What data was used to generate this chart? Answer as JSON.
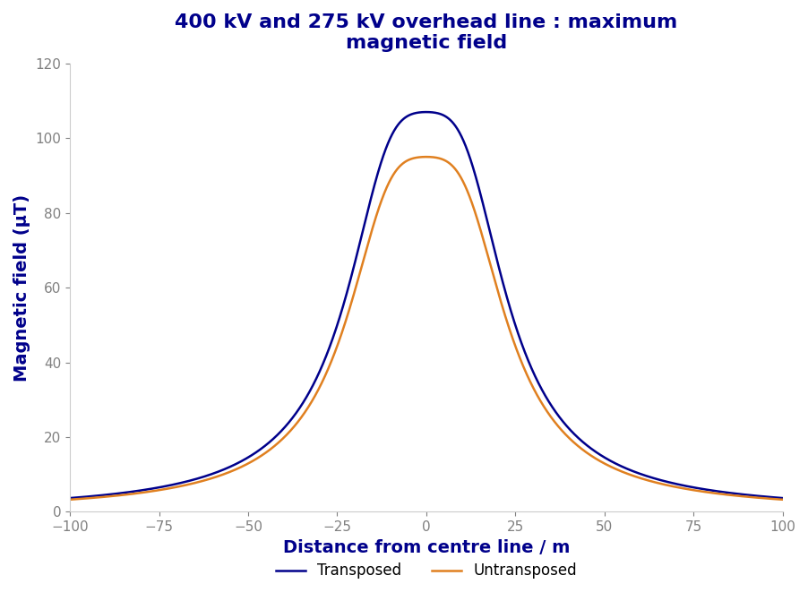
{
  "title": "400 kV and 275 kV overhead line : maximum\nmagnetic field",
  "xlabel": "Distance from centre line / m",
  "ylabel": "Magnetic field (μT)",
  "xlim": [
    -100,
    100
  ],
  "ylim": [
    0,
    120
  ],
  "xticks": [
    -100,
    -75,
    -50,
    -25,
    0,
    25,
    50,
    75,
    100
  ],
  "yticks": [
    0,
    20,
    40,
    60,
    80,
    100,
    120
  ],
  "transposed_color": "#00008B",
  "untransposed_color": "#E08020",
  "legend_labels": [
    "Transposed",
    "Untransposed"
  ],
  "title_color": "#00008B",
  "xlabel_color": "#00008B",
  "ylabel_color": "#00008B",
  "tick_color": "#808080",
  "background_color": "#FFFFFF",
  "line_width": 1.8,
  "title_fontsize": 16,
  "axis_label_fontsize": 14,
  "tick_fontsize": 11,
  "legend_fontsize": 12
}
